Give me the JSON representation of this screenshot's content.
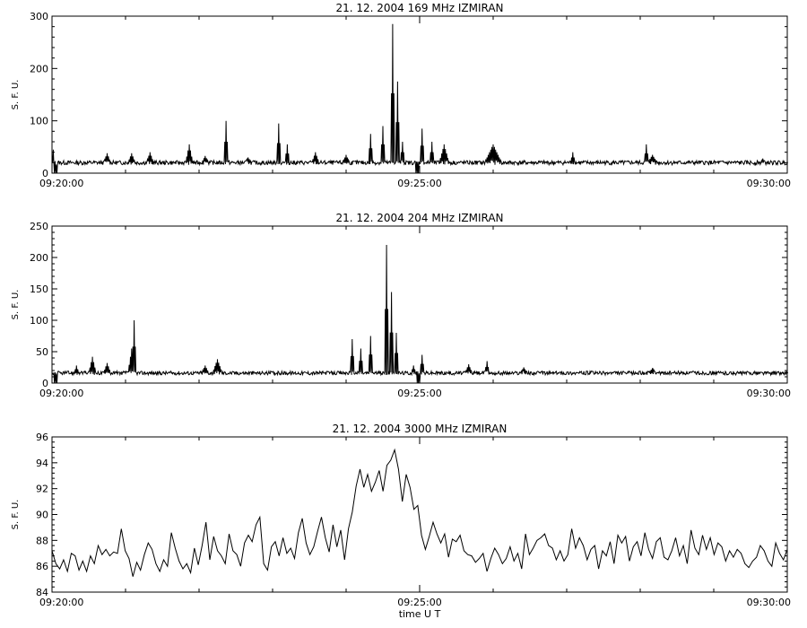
{
  "chart_data": [
    {
      "type": "line",
      "title": "21.  12.  2004    169  MHz     IZMIRAN",
      "ylabel": "S. F. U.",
      "xlabel": "",
      "xlim": [
        "09:20:00",
        "09:30:00"
      ],
      "ylim": [
        0,
        300
      ],
      "x_tick_labels": [
        "09:20:00",
        "09:25:00",
        "09:30:00"
      ],
      "y_tick_labels": [
        "0",
        "100",
        "200",
        "300"
      ],
      "y_ticks": [
        0,
        100,
        200,
        300
      ],
      "grid": false,
      "baseline": 20,
      "noise": 4,
      "spikes": [
        {
          "t": "09:20:01",
          "v": 45,
          "w": 1
        },
        {
          "t": "09:20:03",
          "v": 0,
          "w": 1
        },
        {
          "t": "09:20:45",
          "v": 38,
          "w": 2
        },
        {
          "t": "09:21:05",
          "v": 38,
          "w": 2
        },
        {
          "t": "09:21:20",
          "v": 40,
          "w": 2
        },
        {
          "t": "09:21:52",
          "v": 55,
          "w": 2
        },
        {
          "t": "09:22:05",
          "v": 33,
          "w": 2
        },
        {
          "t": "09:22:22",
          "v": 100,
          "w": 1
        },
        {
          "t": "09:22:40",
          "v": 30,
          "w": 2
        },
        {
          "t": "09:23:05",
          "v": 95,
          "w": 1
        },
        {
          "t": "09:23:12",
          "v": 55,
          "w": 1
        },
        {
          "t": "09:23:35",
          "v": 40,
          "w": 2
        },
        {
          "t": "09:24:00",
          "v": 35,
          "w": 2
        },
        {
          "t": "09:24:20",
          "v": 75,
          "w": 1
        },
        {
          "t": "09:24:30",
          "v": 90,
          "w": 1
        },
        {
          "t": "09:24:38",
          "v": 285,
          "w": 1
        },
        {
          "t": "09:24:42",
          "v": 175,
          "w": 1
        },
        {
          "t": "09:24:46",
          "v": 60,
          "w": 1
        },
        {
          "t": "09:24:58",
          "v": 0,
          "w": 1
        },
        {
          "t": "09:25:02",
          "v": 85,
          "w": 1
        },
        {
          "t": "09:25:10",
          "v": 60,
          "w": 1
        },
        {
          "t": "09:25:20",
          "v": 55,
          "w": 3
        },
        {
          "t": "09:26:00",
          "v": 55,
          "w": 6
        },
        {
          "t": "09:27:05",
          "v": 40,
          "w": 1
        },
        {
          "t": "09:28:05",
          "v": 55,
          "w": 1
        },
        {
          "t": "09:28:10",
          "v": 35,
          "w": 3
        },
        {
          "t": "09:29:40",
          "v": 28,
          "w": 1
        }
      ]
    },
    {
      "type": "line",
      "title": "21.  12.  2004    204  MHz     IZMIRAN",
      "ylabel": "S. F. U.",
      "xlabel": "",
      "xlim": [
        "09:20:00",
        "09:30:00"
      ],
      "ylim": [
        0,
        250
      ],
      "x_tick_labels": [
        "09:20:00",
        "09:25:00",
        "09:30:00"
      ],
      "y_tick_labels": [
        "0",
        "50",
        "100",
        "150",
        "200",
        "250"
      ],
      "y_ticks": [
        0,
        50,
        100,
        150,
        200,
        250
      ],
      "grid": false,
      "baseline": 16,
      "noise": 3,
      "spikes": [
        {
          "t": "09:20:03",
          "v": 0,
          "w": 1
        },
        {
          "t": "09:20:20",
          "v": 28,
          "w": 1
        },
        {
          "t": "09:20:33",
          "v": 42,
          "w": 2
        },
        {
          "t": "09:20:45",
          "v": 32,
          "w": 2
        },
        {
          "t": "09:21:05",
          "v": 55,
          "w": 2
        },
        {
          "t": "09:21:07",
          "v": 100,
          "w": 1
        },
        {
          "t": "09:22:05",
          "v": 28,
          "w": 2
        },
        {
          "t": "09:22:15",
          "v": 38,
          "w": 3
        },
        {
          "t": "09:24:05",
          "v": 70,
          "w": 1
        },
        {
          "t": "09:24:12",
          "v": 55,
          "w": 1
        },
        {
          "t": "09:24:20",
          "v": 75,
          "w": 1
        },
        {
          "t": "09:24:33",
          "v": 220,
          "w": 1
        },
        {
          "t": "09:24:37",
          "v": 145,
          "w": 1
        },
        {
          "t": "09:24:41",
          "v": 80,
          "w": 1
        },
        {
          "t": "09:24:55",
          "v": 28,
          "w": 1
        },
        {
          "t": "09:24:59",
          "v": 0,
          "w": 1
        },
        {
          "t": "09:25:02",
          "v": 45,
          "w": 1
        },
        {
          "t": "09:25:40",
          "v": 30,
          "w": 2
        },
        {
          "t": "09:25:55",
          "v": 35,
          "w": 1
        },
        {
          "t": "09:26:25",
          "v": 25,
          "w": 2
        },
        {
          "t": "09:28:10",
          "v": 24,
          "w": 2
        }
      ]
    },
    {
      "type": "line",
      "title": "21.  12.  2004    3000  MHz     IZMIRAN",
      "ylabel": "S. F. U.",
      "xlabel": "time  U T",
      "xlim": [
        "09:20:00",
        "09:30:00"
      ],
      "ylim": [
        84,
        96
      ],
      "x_tick_labels": [
        "09:20:00",
        "09:25:00",
        "09:30:00"
      ],
      "y_tick_labels": [
        "84",
        "86",
        "88",
        "90",
        "92",
        "94",
        "96"
      ],
      "y_ticks": [
        84,
        86,
        88,
        90,
        92,
        94,
        96
      ],
      "grid": false,
      "values": [
        87.2,
        86.2,
        85.8,
        86.5,
        85.6,
        87.0,
        86.8,
        85.7,
        86.4,
        85.6,
        86.8,
        86.2,
        87.6,
        86.9,
        87.3,
        86.8,
        87.1,
        87.0,
        88.9,
        87.2,
        86.6,
        85.2,
        86.3,
        85.7,
        86.9,
        87.8,
        87.3,
        86.2,
        85.6,
        86.5,
        86.0,
        88.6,
        87.4,
        86.4,
        85.8,
        86.2,
        85.5,
        87.4,
        86.1,
        87.6,
        89.4,
        86.5,
        88.3,
        87.2,
        86.8,
        86.2,
        88.5,
        87.2,
        86.9,
        86.0,
        87.8,
        88.4,
        87.9,
        89.2,
        89.8,
        86.2,
        85.7,
        87.5,
        87.9,
        86.8,
        88.2,
        87.0,
        87.4,
        86.6,
        88.6,
        89.7,
        87.8,
        86.9,
        87.5,
        88.7,
        89.8,
        88.2,
        87.1,
        89.2,
        87.5,
        88.8,
        86.5,
        88.9,
        90.2,
        92.2,
        93.5,
        92.1,
        93.1,
        91.8,
        92.5,
        93.4,
        91.8,
        93.8,
        94.2,
        95.0,
        93.5,
        91.0,
        93.1,
        92.1,
        90.4,
        90.7,
        88.4,
        87.3,
        88.3,
        89.4,
        88.5,
        87.8,
        88.5,
        86.7,
        88.1,
        87.9,
        88.4,
        87.2,
        86.9,
        86.8,
        86.3,
        86.6,
        87.0,
        85.6,
        86.6,
        87.4,
        86.9,
        86.2,
        86.6,
        87.5,
        86.4,
        87.0,
        85.8,
        88.5,
        86.9,
        87.4,
        88.0,
        88.2,
        88.5,
        87.6,
        87.4,
        86.5,
        87.2,
        86.4,
        86.9,
        88.9,
        87.4,
        88.2,
        87.6,
        86.5,
        87.3,
        87.6,
        85.8,
        87.2,
        86.8,
        87.9,
        86.2,
        88.4,
        87.8,
        88.3,
        86.4,
        87.5,
        87.9,
        86.8,
        88.6,
        87.3,
        86.6,
        87.9,
        88.2,
        86.7,
        86.5,
        87.2,
        88.2,
        86.8,
        87.6,
        86.2,
        88.8,
        87.4,
        86.9,
        88.4,
        87.3,
        88.2,
        86.9,
        87.8,
        87.5,
        86.4,
        87.2,
        86.7,
        87.3,
        87.0,
        86.2,
        85.9,
        86.4,
        86.7,
        87.6,
        87.2,
        86.4,
        86.0,
        87.8,
        87.0,
        86.5,
        87.3
      ]
    }
  ]
}
